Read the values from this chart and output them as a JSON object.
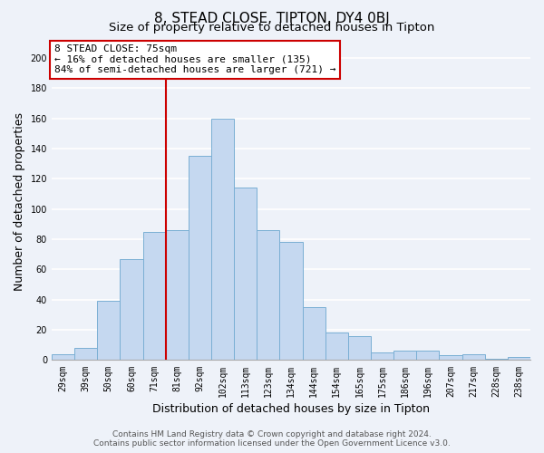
{
  "title": "8, STEAD CLOSE, TIPTON, DY4 0BJ",
  "subtitle": "Size of property relative to detached houses in Tipton",
  "xlabel": "Distribution of detached houses by size in Tipton",
  "ylabel": "Number of detached properties",
  "bar_labels": [
    "29sqm",
    "39sqm",
    "50sqm",
    "60sqm",
    "71sqm",
    "81sqm",
    "92sqm",
    "102sqm",
    "113sqm",
    "123sqm",
    "134sqm",
    "144sqm",
    "154sqm",
    "165sqm",
    "175sqm",
    "186sqm",
    "196sqm",
    "207sqm",
    "217sqm",
    "228sqm",
    "238sqm"
  ],
  "bar_values": [
    4,
    8,
    39,
    67,
    85,
    86,
    135,
    160,
    114,
    86,
    78,
    35,
    18,
    16,
    5,
    6,
    6,
    3,
    4,
    1,
    2
  ],
  "bar_color": "#c5d8f0",
  "bar_edge_color": "#7aafd4",
  "annotation_text_line1": "8 STEAD CLOSE: 75sqm",
  "annotation_text_line2": "← 16% of detached houses are smaller (135)",
  "annotation_text_line3": "84% of semi-detached houses are larger (721) →",
  "annotation_box_color": "#ffffff",
  "annotation_box_edge_color": "#cc0000",
  "vline_color": "#cc0000",
  "ylim": [
    0,
    210
  ],
  "yticks": [
    0,
    20,
    40,
    60,
    80,
    100,
    120,
    140,
    160,
    180,
    200
  ],
  "footer_line1": "Contains HM Land Registry data © Crown copyright and database right 2024.",
  "footer_line2": "Contains public sector information licensed under the Open Government Licence v3.0.",
  "background_color": "#eef2f9",
  "grid_color": "#ffffff",
  "title_fontsize": 11,
  "subtitle_fontsize": 9.5,
  "axis_label_fontsize": 9,
  "tick_fontsize": 7,
  "footer_fontsize": 6.5,
  "annotation_fontsize": 8
}
